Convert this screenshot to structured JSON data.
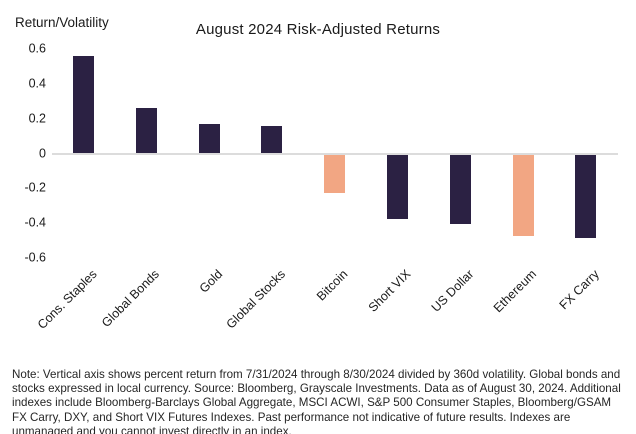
{
  "chart_data": {
    "type": "bar",
    "title": "August 2024 Risk-Adjusted Returns",
    "ylabel": "Return/Volatility",
    "xlabel": "",
    "categories": [
      "Cons. Staples",
      "Global Bonds",
      "Gold",
      "Global Stocks",
      "Bitcoin",
      "Short VIX",
      "US Dollar",
      "Ethereum",
      "FX Carry"
    ],
    "values": [
      0.56,
      0.26,
      0.17,
      0.16,
      -0.22,
      -0.37,
      -0.4,
      -0.47,
      -0.48
    ],
    "bar_colors": [
      "#2b2143",
      "#2b2143",
      "#2b2143",
      "#2b2143",
      "#f2a683",
      "#2b2143",
      "#2b2143",
      "#f2a683",
      "#2b2143"
    ],
    "palette": {
      "navy": "#2b2143",
      "salmon": "#f2a683"
    },
    "yticks": [
      0.6,
      0.4,
      0.2,
      0,
      -0.2,
      -0.4,
      -0.6
    ],
    "ylim": [
      -0.6,
      0.6
    ],
    "grid": false,
    "legend": "none",
    "axis_color": "#dcdcdc",
    "text_color": "#1a1a1a",
    "xtick_rotation_deg": 45
  },
  "note": {
    "text": "Note: Vertical axis shows percent return from 7/31/2024 through 8/30/2024 divided by 360d volatility. Global bonds and stocks expressed in local currency. Source: Bloomberg, Grayscale Investments. Data as of August 30, 2024. Additional indexes include Bloomberg-Barclays Global Aggregate, MSCI ACWI, S&P 500 Consumer Staples, Bloomberg/GSAM FX Carry, DXY, and Short VIX Futures Indexes. Past performance not indicative of future results. Indexes are unmanaged and you cannot invest directly in an index."
  }
}
